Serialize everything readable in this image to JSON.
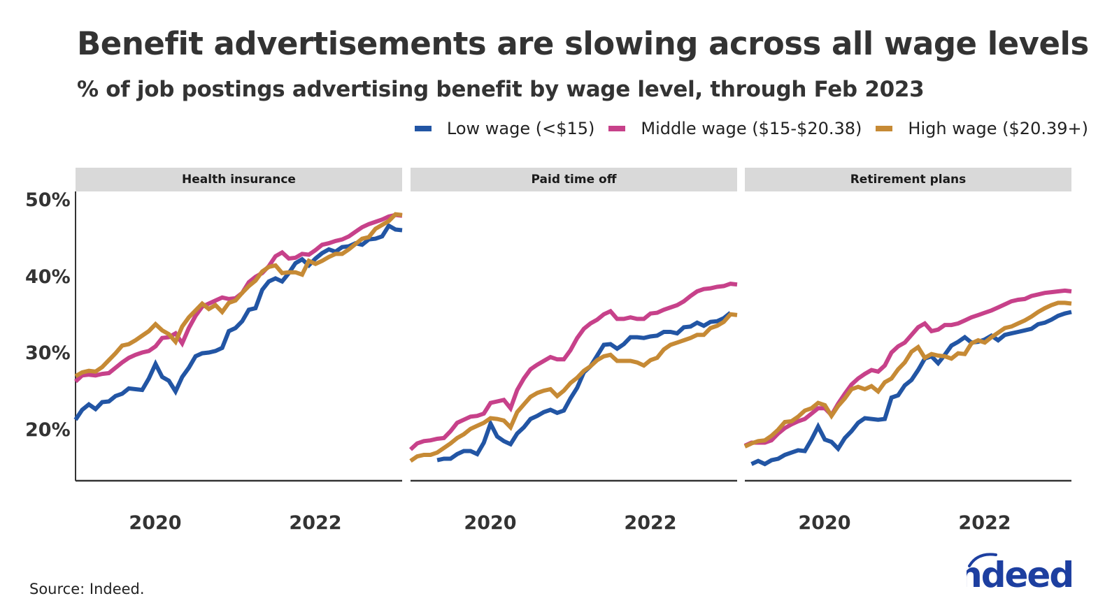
{
  "title": "Benefit advertisements are slowing across all wage levels",
  "subtitle": "% of job postings advertising benefit by wage level, through Feb 2023",
  "source": "Source: Indeed.",
  "logo_text": "indeed",
  "colors": {
    "low": "#2255a4",
    "middle": "#c7418a",
    "high": "#c68a35",
    "logo": "#1d3fa0",
    "strip": "#d9d9d9"
  },
  "chart_data": [
    {
      "type": "line",
      "title": "Health insurance",
      "xlabel": "",
      "ylabel": "",
      "x_start": "2019-01",
      "x_end": "2023-02",
      "x_ticks": [
        "2020",
        "2022"
      ],
      "y_ticks": [
        "20%",
        "30%",
        "40%",
        "50%"
      ],
      "ylim": [
        13.5,
        51.5
      ],
      "grid": false,
      "legend": "top-right",
      "series": [
        {
          "name": "Low wage (<$15)",
          "start_index": 0,
          "values": [
            21.4,
            22.7,
            23.4,
            22.8,
            23.7,
            23.8,
            24.5,
            24.8,
            25.5,
            25.4,
            25.3,
            26.8,
            28.7,
            27.0,
            26.5,
            25.1,
            27.0,
            28.2,
            29.7,
            30.1,
            30.2,
            30.4,
            30.8,
            33.0,
            33.4,
            34.3,
            35.8,
            36.0,
            38.4,
            39.5,
            39.9,
            39.5,
            40.6,
            41.9,
            42.4,
            41.6,
            42.5,
            43.2,
            43.7,
            43.4,
            44.0,
            44.1,
            44.5,
            44.3,
            45.0,
            45.1,
            45.4,
            46.8,
            46.3,
            46.2
          ]
        },
        {
          "name": "Middle wage ($15-$20.38)",
          "start_index": 0,
          "values": [
            26.4,
            27.2,
            27.3,
            27.2,
            27.4,
            27.5,
            28.2,
            28.9,
            29.5,
            29.9,
            30.2,
            30.4,
            31.0,
            32.1,
            32.2,
            32.7,
            31.4,
            33.4,
            35.0,
            36.2,
            36.6,
            37.0,
            37.4,
            37.2,
            37.3,
            38.0,
            39.4,
            40.1,
            40.6,
            41.5,
            42.8,
            43.3,
            42.5,
            42.6,
            43.1,
            43.0,
            43.6,
            44.3,
            44.5,
            44.8,
            45.0,
            45.4,
            46.0,
            46.6,
            47.0,
            47.3,
            47.6,
            48.0,
            48.2,
            48.1
          ]
        },
        {
          "name": "High wage ($20.39+)",
          "start_index": 0,
          "values": [
            27.1,
            27.6,
            27.8,
            27.7,
            28.3,
            29.2,
            30.1,
            31.1,
            31.3,
            31.8,
            32.4,
            33.0,
            33.9,
            33.1,
            32.6,
            31.6,
            33.6,
            34.8,
            35.7,
            36.6,
            35.9,
            36.4,
            35.5,
            36.7,
            37.0,
            38.0,
            38.9,
            39.6,
            40.8,
            41.4,
            41.6,
            40.6,
            40.7,
            40.7,
            40.4,
            42.2,
            41.8,
            42.2,
            42.7,
            43.1,
            43.1,
            43.7,
            44.4,
            45.1,
            45.3,
            46.4,
            46.9,
            47.4,
            48.3,
            48.2
          ]
        }
      ]
    },
    {
      "type": "line",
      "title": "Paid time off",
      "xlabel": "",
      "ylabel": "",
      "x_start": "2019-01",
      "x_end": "2023-02",
      "x_ticks": [
        "2020",
        "2022"
      ],
      "y_ticks": [
        "20%",
        "30%",
        "40%",
        "50%"
      ],
      "ylim": [
        13.5,
        51.5
      ],
      "grid": false,
      "legend": "top-right",
      "series": [
        {
          "name": "Low wage (<$15)",
          "start_index": 4,
          "values": [
            16.1,
            16.3,
            16.3,
            16.9,
            17.3,
            17.3,
            16.9,
            18.4,
            20.9,
            19.2,
            18.6,
            18.2,
            19.6,
            20.4,
            21.5,
            21.9,
            22.4,
            22.7,
            22.3,
            22.6,
            24.2,
            25.6,
            27.6,
            28.4,
            29.8,
            31.2,
            31.3,
            30.7,
            31.3,
            32.2,
            32.2,
            32.1,
            32.3,
            32.4,
            32.9,
            32.9,
            32.7,
            33.5,
            33.6,
            34.1,
            33.7,
            34.2,
            34.3,
            34.7,
            35.4
          ]
        },
        {
          "name": "Middle wage ($15-$20.38)",
          "start_index": 0,
          "values": [
            17.5,
            18.3,
            18.6,
            18.7,
            18.9,
            19.0,
            19.9,
            21.0,
            21.4,
            21.8,
            21.9,
            22.2,
            23.6,
            23.8,
            24.0,
            22.9,
            25.3,
            26.8,
            28.0,
            28.6,
            29.1,
            29.6,
            29.3,
            29.3,
            30.5,
            32.1,
            33.3,
            34.0,
            34.5,
            35.2,
            35.6,
            34.6,
            34.6,
            34.8,
            34.6,
            34.6,
            35.3,
            35.4,
            35.8,
            36.1,
            36.4,
            36.9,
            37.6,
            38.2,
            38.5,
            38.6,
            38.8,
            38.9,
            39.2,
            39.1
          ]
        },
        {
          "name": "High wage ($20.39+)",
          "start_index": 0,
          "values": [
            16.0,
            16.6,
            16.8,
            16.8,
            17.1,
            17.7,
            18.3,
            19.0,
            19.5,
            20.2,
            20.6,
            21.0,
            21.6,
            21.5,
            21.3,
            20.4,
            22.4,
            23.4,
            24.4,
            24.9,
            25.2,
            25.4,
            24.5,
            25.2,
            26.2,
            26.9,
            27.8,
            28.4,
            29.2,
            29.7,
            29.9,
            29.1,
            29.1,
            29.1,
            28.9,
            28.5,
            29.2,
            29.5,
            30.6,
            31.2,
            31.5,
            31.8,
            32.1,
            32.5,
            32.5,
            33.4,
            33.7,
            34.2,
            35.2,
            35.1
          ]
        }
      ]
    },
    {
      "type": "line",
      "title": "Retirement plans",
      "xlabel": "",
      "ylabel": "",
      "x_start": "2019-01",
      "x_end": "2023-02",
      "x_ticks": [
        "2020",
        "2022"
      ],
      "y_ticks": [
        "20%",
        "30%",
        "40%",
        "50%"
      ],
      "ylim": [
        13.5,
        51.5
      ],
      "grid": false,
      "legend": "top-right",
      "series": [
        {
          "name": "Low wage (<$15)",
          "start_index": 1,
          "values": [
            15.6,
            16.0,
            15.6,
            16.1,
            16.3,
            16.8,
            17.1,
            17.4,
            17.3,
            18.8,
            20.5,
            18.8,
            18.5,
            17.6,
            19.0,
            19.9,
            21.0,
            21.6,
            21.5,
            21.4,
            21.5,
            24.3,
            24.6,
            25.9,
            26.6,
            27.9,
            29.4,
            29.7,
            28.8,
            29.9,
            31.1,
            31.6,
            32.2,
            31.5,
            31.6,
            31.9,
            32.4,
            31.8,
            32.5,
            32.7,
            32.9,
            33.1,
            33.3,
            33.9,
            34.1,
            34.5,
            35.0,
            35.3,
            35.5
          ]
        },
        {
          "name": "Middle wage ($15-$20.38)",
          "start_index": 0,
          "values": [
            18.0,
            18.4,
            18.4,
            18.4,
            18.7,
            19.6,
            20.3,
            20.8,
            21.2,
            21.5,
            22.2,
            22.9,
            22.9,
            22.0,
            23.5,
            24.8,
            26.0,
            26.8,
            27.4,
            27.9,
            27.7,
            28.5,
            30.2,
            31.0,
            31.5,
            32.5,
            33.5,
            34.0,
            33.0,
            33.2,
            33.8,
            33.8,
            34.0,
            34.4,
            34.8,
            35.1,
            35.4,
            35.7,
            36.1,
            36.5,
            36.9,
            37.1,
            37.2,
            37.6,
            37.8,
            38.0,
            38.1,
            38.2,
            38.3,
            38.2
          ]
        },
        {
          "name": "High wage ($20.39+)",
          "start_index": 0,
          "values": [
            17.9,
            18.3,
            18.6,
            18.7,
            19.3,
            20.1,
            21.1,
            21.2,
            21.8,
            22.6,
            22.9,
            23.6,
            23.3,
            21.9,
            23.2,
            24.2,
            25.4,
            25.7,
            25.4,
            25.8,
            25.1,
            26.3,
            26.8,
            28.0,
            28.9,
            30.3,
            30.9,
            29.5,
            30.0,
            29.8,
            29.7,
            29.4,
            30.1,
            30.0,
            31.4,
            31.8,
            31.5,
            32.2,
            32.8,
            33.4,
            33.6,
            34.0,
            34.4,
            34.9,
            35.5,
            36.0,
            36.4,
            36.7,
            36.7,
            36.6
          ]
        }
      ]
    }
  ]
}
